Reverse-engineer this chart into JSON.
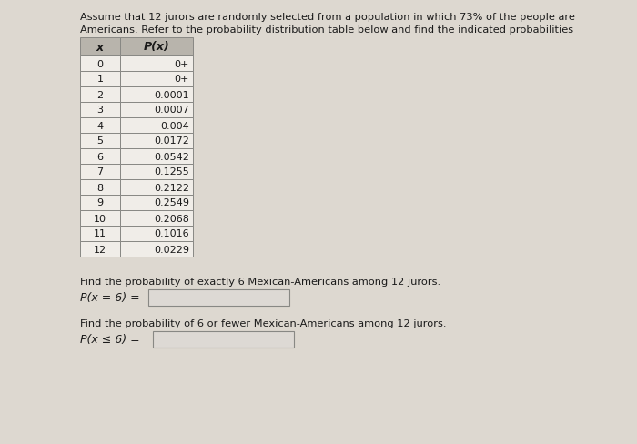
{
  "title_line1": "Assume that 12 jurors are randomly selected from a population in which 73% of the people are",
  "title_line2": "Americans. Refer to the probability distribution table below and find the indicated probabilities",
  "col_headers": [
    "x",
    "P(x)"
  ],
  "table_data": [
    [
      "0",
      "0+"
    ],
    [
      "1",
      "0+"
    ],
    [
      "2",
      "0.0001"
    ],
    [
      "3",
      "0.0007"
    ],
    [
      "4",
      "0.004"
    ],
    [
      "5",
      "0.0172"
    ],
    [
      "6",
      "0.0542"
    ],
    [
      "7",
      "0.1255"
    ],
    [
      "8",
      "0.2122"
    ],
    [
      "9",
      "0.2549"
    ],
    [
      "10",
      "0.2068"
    ],
    [
      "11",
      "0.1016"
    ],
    [
      "12",
      "0.0229"
    ]
  ],
  "q1_text": "Find the probability of exactly 6 Mexican-Americans among 12 jurors.",
  "q1_label": "P(x = 6) =",
  "q2_text": "Find the probability of 6 or fewer Mexican-Americans among 12 jurors.",
  "q2_label": "P(x ≤ 6) =",
  "bg_color": "#ddd8d0",
  "cell_bg": "#f0ede8",
  "header_bg": "#b8b4ac",
  "text_color": "#1a1a1a",
  "input_box_color": "#ddd9d4",
  "border_color": "#888884",
  "fig_width": 7.0,
  "fig_height": 4.89,
  "dpi": 100
}
